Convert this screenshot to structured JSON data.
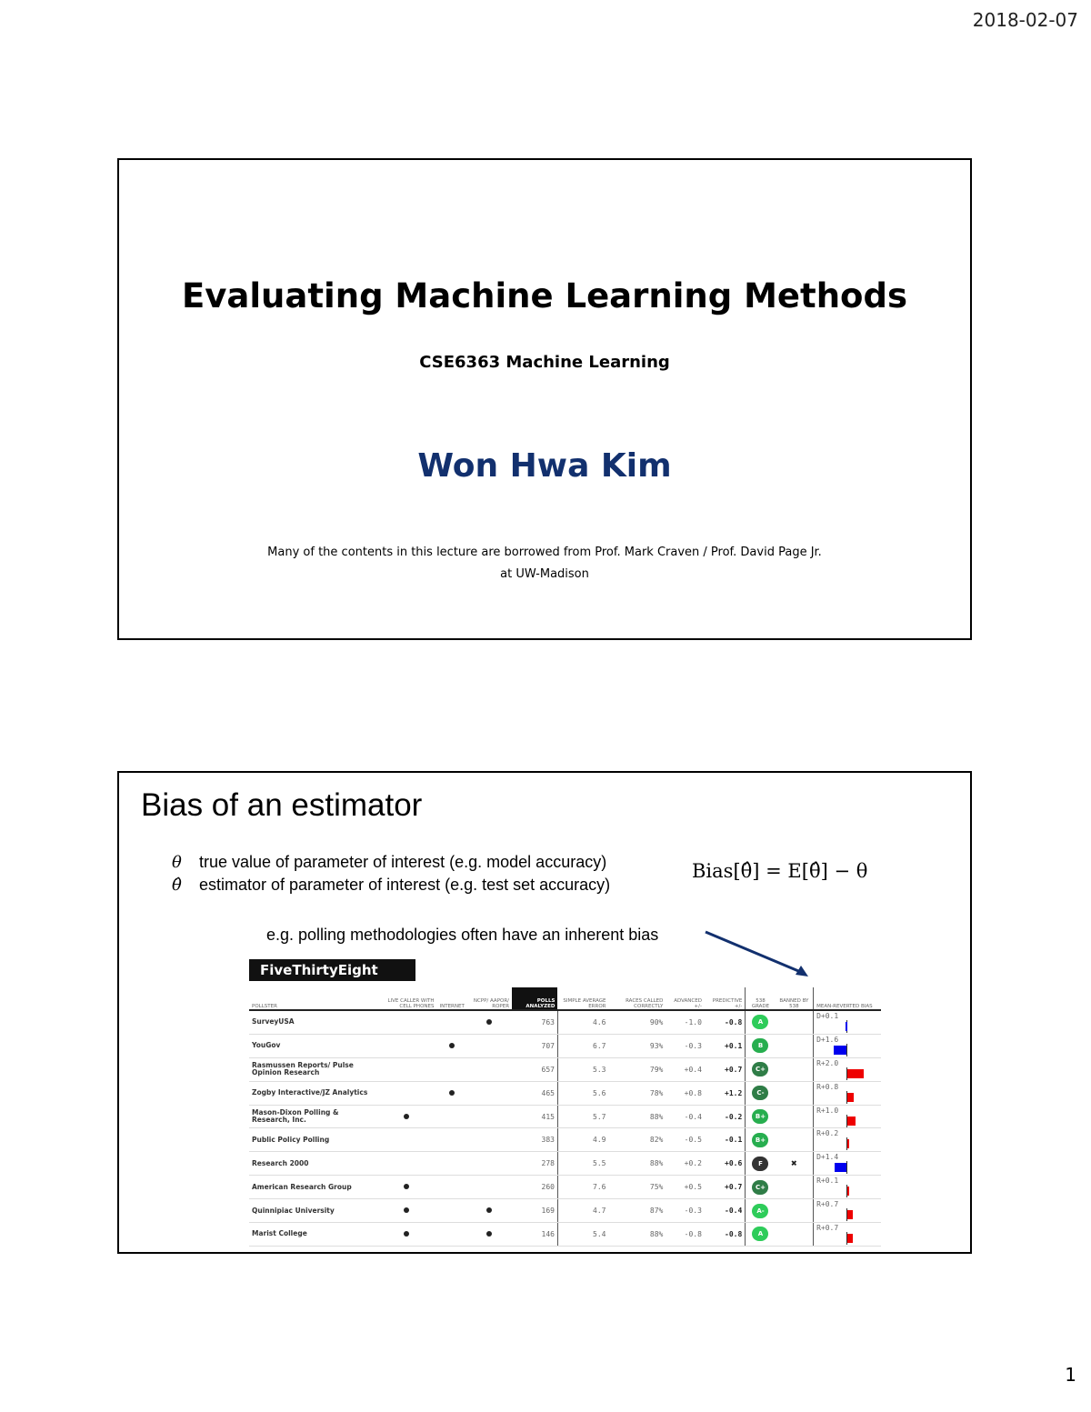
{
  "header": {
    "date": "2018-02-07"
  },
  "footer": {
    "page_number": "1"
  },
  "slide1": {
    "title": "Evaluating Machine Learning Methods",
    "course": "CSE6363 Machine Learning",
    "author": "Won Hwa Kim",
    "note_line1": "Many of the contents in this lecture are borrowed from Prof. Mark Craven / Prof. David Page Jr.",
    "note_line2": "at UW-Madison"
  },
  "slide2": {
    "title": "Bias of an estimator",
    "defs": [
      {
        "symbol": "θ",
        "text": "true value of parameter of interest (e.g. model accuracy)"
      },
      {
        "symbol": "θ̂",
        "text": "estimator of parameter of interest (e.g. test set accuracy)"
      }
    ],
    "formula": "Bias[θ̂] = E[θ̂] − θ",
    "example": "e.g. polling methodologies often have an inherent bias",
    "logo": "FiveThirtyEight",
    "table": {
      "headers": [
        "POLLSTER",
        "LIVE CALLER WITH CELL PHONES",
        "INTERNET",
        "NCPP/ AAPOR/ ROPER",
        "POLLS ANALYZED",
        "SIMPLE AVERAGE ERROR",
        "RACES CALLED CORRECTLY",
        "ADVANCED +/-",
        "PREDICTIVE +/-",
        "538 GRADE",
        "BANNED BY 538",
        "MEAN-REVERTED BIAS"
      ],
      "colors": {
        "dem": "#0000ee",
        "rep": "#ee0000",
        "grade_a": "#2ecc5a",
        "grade_b": "#27ae4f",
        "grade_c": "#2f7d47",
        "grade_f": "#333333"
      },
      "rows": [
        {
          "pollster": "SurveyUSA",
          "live": false,
          "internet": false,
          "ncpp": true,
          "polls": "763",
          "error": "4.6",
          "called": "90%",
          "advanced": "-1.0",
          "predictive": "-0.8",
          "grade": "A",
          "banned": false,
          "bias": "D+0.1",
          "bias_value": -0.1
        },
        {
          "pollster": "YouGov",
          "live": false,
          "internet": true,
          "ncpp": false,
          "polls": "707",
          "error": "6.7",
          "called": "93%",
          "advanced": "-0.3",
          "predictive": "+0.1",
          "grade": "B",
          "banned": false,
          "bias": "D+1.6",
          "bias_value": -1.6
        },
        {
          "pollster": "Rasmussen Reports/ Pulse Opinion Research",
          "live": false,
          "internet": false,
          "ncpp": false,
          "polls": "657",
          "error": "5.3",
          "called": "79%",
          "advanced": "+0.4",
          "predictive": "+0.7",
          "grade": "C+",
          "banned": false,
          "bias": "R+2.0",
          "bias_value": 2.0
        },
        {
          "pollster": "Zogby Interactive/JZ Analytics",
          "live": false,
          "internet": true,
          "ncpp": false,
          "polls": "465",
          "error": "5.6",
          "called": "78%",
          "advanced": "+0.8",
          "predictive": "+1.2",
          "grade": "C-",
          "banned": false,
          "bias": "R+0.8",
          "bias_value": 0.8
        },
        {
          "pollster": "Mason-Dixon Polling & Research, Inc.",
          "live": true,
          "internet": false,
          "ncpp": false,
          "polls": "415",
          "error": "5.7",
          "called": "88%",
          "advanced": "-0.4",
          "predictive": "-0.2",
          "grade": "B+",
          "banned": false,
          "bias": "R+1.0",
          "bias_value": 1.0
        },
        {
          "pollster": "Public Policy Polling",
          "live": false,
          "internet": false,
          "ncpp": false,
          "polls": "383",
          "error": "4.9",
          "called": "82%",
          "advanced": "-0.5",
          "predictive": "-0.1",
          "grade": "B+",
          "banned": false,
          "bias": "R+0.2",
          "bias_value": 0.2
        },
        {
          "pollster": "Research 2000",
          "live": false,
          "internet": false,
          "ncpp": false,
          "polls": "278",
          "error": "5.5",
          "called": "88%",
          "advanced": "+0.2",
          "predictive": "+0.6",
          "grade": "F",
          "banned": true,
          "bias": "D+1.4",
          "bias_value": -1.4
        },
        {
          "pollster": "American Research Group",
          "live": true,
          "internet": false,
          "ncpp": false,
          "polls": "260",
          "error": "7.6",
          "called": "75%",
          "advanced": "+0.5",
          "predictive": "+0.7",
          "grade": "C+",
          "banned": false,
          "bias": "R+0.1",
          "bias_value": 0.1
        },
        {
          "pollster": "Quinnipiac University",
          "live": true,
          "internet": false,
          "ncpp": true,
          "polls": "169",
          "error": "4.7",
          "called": "87%",
          "advanced": "-0.3",
          "predictive": "-0.4",
          "grade": "A-",
          "banned": false,
          "bias": "R+0.7",
          "bias_value": 0.7
        },
        {
          "pollster": "Marist College",
          "live": true,
          "internet": false,
          "ncpp": true,
          "polls": "146",
          "error": "5.4",
          "called": "88%",
          "advanced": "-0.8",
          "predictive": "-0.8",
          "grade": "A",
          "banned": false,
          "bias": "R+0.7",
          "bias_value": 0.7
        }
      ]
    }
  }
}
